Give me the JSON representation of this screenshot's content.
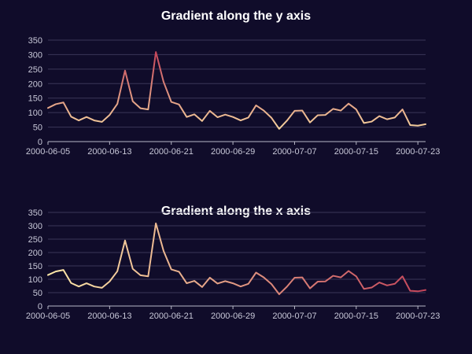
{
  "background_color": "#100c2a",
  "chart_data": [
    {
      "type": "line",
      "title": "Gradient along the y axis",
      "gradient": "y",
      "gradient_colors": [
        "#fde9a9",
        "#c4455a"
      ],
      "xlabel": "",
      "ylabel": "",
      "ylim": [
        0,
        350
      ],
      "yticks": [
        0,
        50,
        100,
        150,
        200,
        250,
        300,
        350
      ],
      "xticks": [
        "2000-06-05",
        "2000-06-13",
        "2000-06-21",
        "2000-06-29",
        "2000-07-07",
        "2000-07-15",
        "2000-07-23"
      ],
      "grid": true,
      "x": [
        "2000-06-05",
        "2000-06-06",
        "2000-06-07",
        "2000-06-08",
        "2000-06-09",
        "2000-06-10",
        "2000-06-11",
        "2000-06-12",
        "2000-06-13",
        "2000-06-14",
        "2000-06-15",
        "2000-06-16",
        "2000-06-17",
        "2000-06-18",
        "2000-06-19",
        "2000-06-20",
        "2000-06-21",
        "2000-06-22",
        "2000-06-23",
        "2000-06-24",
        "2000-06-25",
        "2000-06-26",
        "2000-06-27",
        "2000-06-28",
        "2000-06-29",
        "2000-06-30",
        "2000-07-01",
        "2000-07-02",
        "2000-07-03",
        "2000-07-04",
        "2000-07-05",
        "2000-07-06",
        "2000-07-07",
        "2000-07-08",
        "2000-07-09",
        "2000-07-10",
        "2000-07-11",
        "2000-07-12",
        "2000-07-13",
        "2000-07-14",
        "2000-07-15",
        "2000-07-16",
        "2000-07-17",
        "2000-07-18",
        "2000-07-19",
        "2000-07-20",
        "2000-07-21",
        "2000-07-22",
        "2000-07-23",
        "2000-07-24"
      ],
      "values": [
        116,
        129,
        135,
        86,
        73,
        85,
        73,
        68,
        92,
        130,
        245,
        139,
        115,
        111,
        309,
        206,
        137,
        128,
        85,
        94,
        71,
        106,
        84,
        93,
        85,
        73,
        83,
        125,
        107,
        82,
        44,
        72,
        106,
        107,
        66,
        91,
        92,
        113,
        107,
        131,
        111,
        64,
        69,
        88,
        77,
        83,
        111,
        57,
        55,
        60
      ]
    },
    {
      "type": "line",
      "title": "Gradient along the x axis",
      "gradient": "x",
      "gradient_colors": [
        "#fde9a9",
        "#c4455a"
      ],
      "xlabel": "",
      "ylabel": "",
      "ylim": [
        0,
        350
      ],
      "yticks": [
        0,
        50,
        100,
        150,
        200,
        250,
        300,
        350
      ],
      "xticks": [
        "2000-06-05",
        "2000-06-13",
        "2000-06-21",
        "2000-06-29",
        "2000-07-07",
        "2000-07-15",
        "2000-07-23"
      ],
      "grid": true,
      "x": [
        "2000-06-05",
        "2000-06-06",
        "2000-06-07",
        "2000-06-08",
        "2000-06-09",
        "2000-06-10",
        "2000-06-11",
        "2000-06-12",
        "2000-06-13",
        "2000-06-14",
        "2000-06-15",
        "2000-06-16",
        "2000-06-17",
        "2000-06-18",
        "2000-06-19",
        "2000-06-20",
        "2000-06-21",
        "2000-06-22",
        "2000-06-23",
        "2000-06-24",
        "2000-06-25",
        "2000-06-26",
        "2000-06-27",
        "2000-06-28",
        "2000-06-29",
        "2000-06-30",
        "2000-07-01",
        "2000-07-02",
        "2000-07-03",
        "2000-07-04",
        "2000-07-05",
        "2000-07-06",
        "2000-07-07",
        "2000-07-08",
        "2000-07-09",
        "2000-07-10",
        "2000-07-11",
        "2000-07-12",
        "2000-07-13",
        "2000-07-14",
        "2000-07-15",
        "2000-07-16",
        "2000-07-17",
        "2000-07-18",
        "2000-07-19",
        "2000-07-20",
        "2000-07-21",
        "2000-07-22",
        "2000-07-23",
        "2000-07-24"
      ],
      "values": [
        116,
        129,
        135,
        86,
        73,
        85,
        73,
        68,
        92,
        130,
        245,
        139,
        115,
        111,
        309,
        206,
        137,
        128,
        85,
        94,
        71,
        106,
        84,
        93,
        85,
        73,
        83,
        125,
        107,
        82,
        44,
        72,
        106,
        107,
        66,
        91,
        92,
        113,
        107,
        131,
        111,
        64,
        69,
        88,
        77,
        83,
        111,
        57,
        55,
        60
      ]
    }
  ]
}
